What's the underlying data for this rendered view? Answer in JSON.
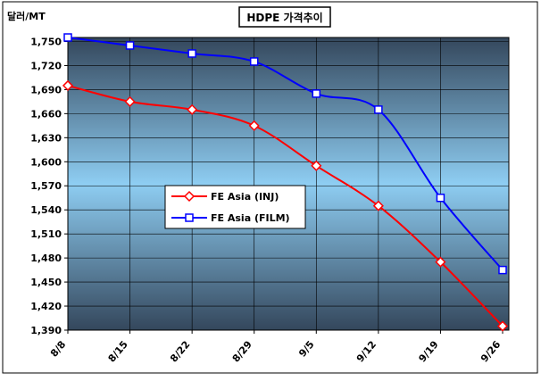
{
  "chart_data": {
    "type": "line",
    "title": "HDPE 가격추이",
    "ylabel": "달러/MT",
    "xlabel": "",
    "categories": [
      "8/8",
      "8/15",
      "8/22",
      "8/29",
      "9/5",
      "9/12",
      "9/19",
      "9/26"
    ],
    "y_ticks": [
      "1,390",
      "1,420",
      "1,450",
      "1,480",
      "1,510",
      "1,540",
      "1,570",
      "1,600",
      "1,630",
      "1,660",
      "1,690",
      "1,720",
      "1,750"
    ],
    "ylim": [
      1390,
      1755
    ],
    "grid": true,
    "legend_position": "center-left",
    "series": [
      {
        "name": "FE Asia (INJ)",
        "color": "#ff0000",
        "marker": "diamond",
        "values": [
          1695,
          1675,
          1665,
          1645,
          1595,
          1545,
          1475,
          1395
        ]
      },
      {
        "name": "FE Asia (FILM)",
        "color": "#0000ff",
        "marker": "square",
        "values": [
          1755,
          1745,
          1735,
          1725,
          1685,
          1665,
          1555,
          1465
        ]
      }
    ]
  }
}
